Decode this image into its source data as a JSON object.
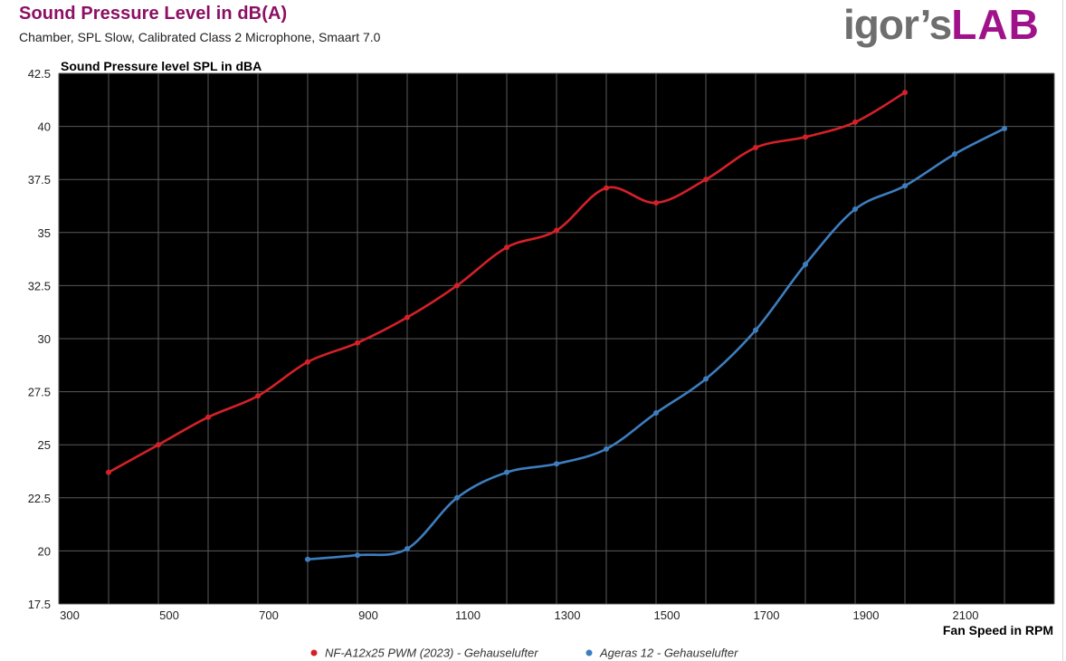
{
  "header": {
    "title": "Sound Pressure Level in dB(A)",
    "subtitle": "Chamber, SPL Slow, Calibrated Class 2 Microphone, Smaart 7.0",
    "logo": {
      "igor": "igor",
      "apostrophe_s": "s",
      "lab": "LAB",
      "glyph": "heart-pulse-o-icon"
    }
  },
  "colors": {
    "plot_background": "#000000",
    "grid": "#5a5a5a",
    "brand_purple": "#8c0f63",
    "series1": "#d42128",
    "series2": "#3d7ebf"
  },
  "chart_data": {
    "type": "line",
    "title": "Sound Pressure Level in dB(A)",
    "subtitle": "Chamber, SPL Slow, Calibrated Class 2 Microphone, Smaart 7.0",
    "ylabel": "Sound Pressure level SPL in dBA",
    "xlabel": "Fan Speed in RPM",
    "xlim": [
      300,
      2300
    ],
    "ylim": [
      17.5,
      42.5
    ],
    "xticks": [
      300,
      500,
      700,
      900,
      1100,
      1300,
      1500,
      1700,
      1900,
      2100
    ],
    "yticks": [
      17.5,
      20,
      22.5,
      25,
      27.5,
      30,
      32.5,
      35,
      37.5,
      40,
      42.5
    ],
    "ytick_labels": [
      "17.5",
      "20",
      "22.5",
      "25",
      "27.5",
      "30",
      "32.5",
      "35",
      "37.5",
      "40",
      "42.5"
    ],
    "grid": true,
    "legend_position": "bottom-center",
    "series": [
      {
        "name": "NF-A12x25 PWM (2023) - Gehauselufter",
        "color": "#d42128",
        "x": [
          400,
          500,
          600,
          700,
          800,
          900,
          1000,
          1100,
          1200,
          1300,
          1400,
          1500,
          1600,
          1700,
          1800,
          1900,
          2000
        ],
        "y": [
          23.7,
          25.0,
          26.3,
          27.3,
          28.9,
          29.8,
          31.0,
          32.5,
          34.3,
          35.1,
          37.1,
          36.4,
          37.5,
          39.0,
          39.5,
          40.2,
          41.6
        ]
      },
      {
        "name": "Ageras 12 - Gehauselufter",
        "color": "#3d7ebf",
        "x": [
          800,
          900,
          1000,
          1100,
          1200,
          1300,
          1400,
          1500,
          1600,
          1700,
          1800,
          1900,
          2000,
          2100,
          2200
        ],
        "y": [
          19.6,
          19.8,
          20.1,
          22.5,
          23.7,
          24.1,
          24.8,
          26.5,
          28.1,
          30.4,
          33.5,
          36.1,
          37.2,
          38.7,
          39.9
        ]
      }
    ]
  }
}
